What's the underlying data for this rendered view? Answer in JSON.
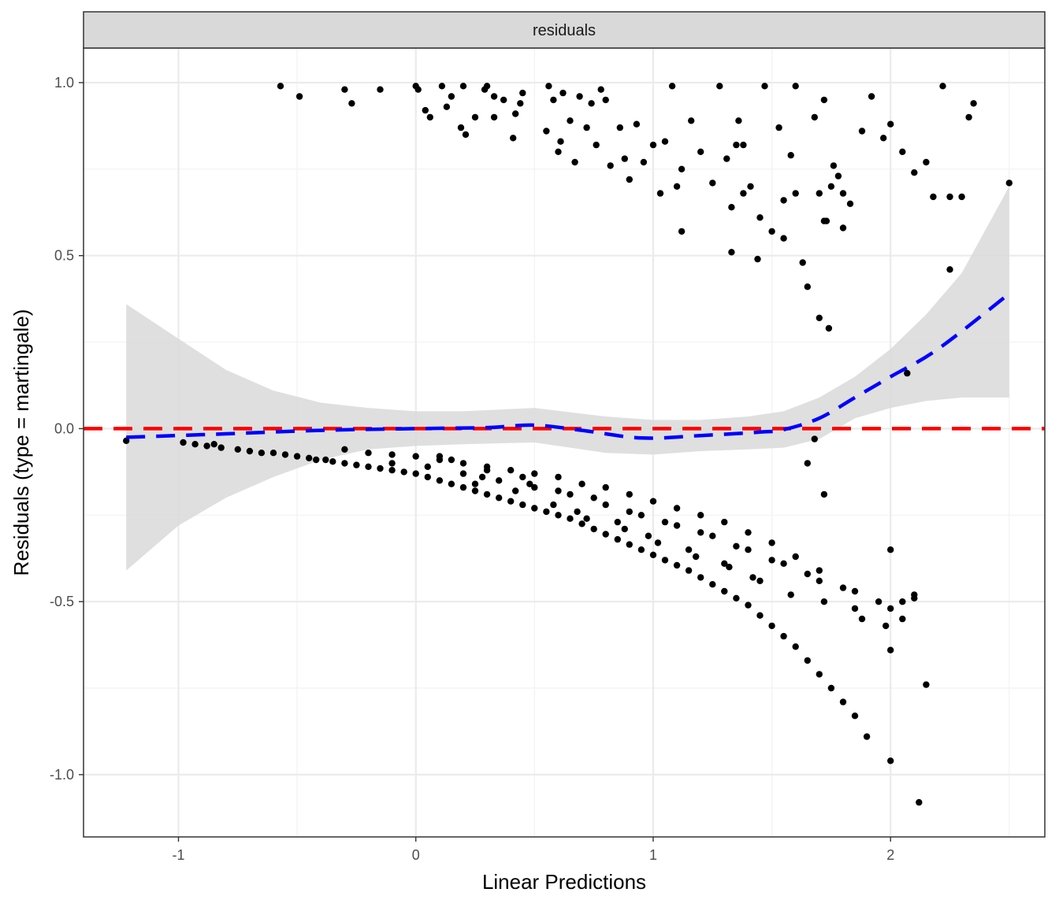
{
  "chart_data": {
    "type": "scatter",
    "facet_label": "residuals",
    "xlabel": "Linear Predictions",
    "ylabel": "Residuals (type = martingale)",
    "xlim": [
      -1.4,
      2.65
    ],
    "ylim": [
      -1.18,
      1.1
    ],
    "x_ticks": [
      -1,
      0,
      1,
      2
    ],
    "x_tick_labels": [
      "-1",
      "0",
      "1",
      "2"
    ],
    "y_ticks": [
      -1.0,
      -0.5,
      0.0,
      0.5,
      1.0
    ],
    "y_tick_labels": [
      "-1.0",
      "-0.5",
      "0.0",
      "0.5",
      "1.0"
    ],
    "grid": true,
    "colors": {
      "points": "#000000",
      "smooth": "#0000ff",
      "ribbon": "#d9d9d9",
      "reference": "#ff0000",
      "strip": "#d9d9d9"
    },
    "reference_line": {
      "y": 0,
      "style": "dashed",
      "color": "#ff0000"
    },
    "smooth": {
      "x": [
        -1.22,
        -0.8,
        -0.4,
        0.0,
        0.3,
        0.5,
        0.7,
        0.95,
        1.2,
        1.45,
        1.55,
        1.7,
        1.85,
        2.0,
        2.2,
        2.5
      ],
      "y": [
        -0.025,
        -0.015,
        -0.005,
        0.0,
        0.003,
        0.01,
        -0.005,
        -0.027,
        -0.02,
        -0.01,
        -0.003,
        0.03,
        0.09,
        0.15,
        0.23,
        0.39
      ]
    },
    "ribbon": {
      "x": [
        -1.22,
        -1.0,
        -0.8,
        -0.6,
        -0.4,
        -0.2,
        0.0,
        0.2,
        0.5,
        0.8,
        1.0,
        1.2,
        1.4,
        1.55,
        1.7,
        1.85,
        2.0,
        2.15,
        2.3,
        2.5
      ],
      "upper": [
        0.36,
        0.26,
        0.17,
        0.11,
        0.075,
        0.06,
        0.05,
        0.05,
        0.06,
        0.035,
        0.025,
        0.025,
        0.035,
        0.05,
        0.09,
        0.15,
        0.23,
        0.33,
        0.45,
        0.7
      ],
      "lower": [
        -0.41,
        -0.28,
        -0.2,
        -0.14,
        -0.09,
        -0.06,
        -0.05,
        -0.045,
        -0.04,
        -0.07,
        -0.075,
        -0.065,
        -0.06,
        -0.055,
        -0.03,
        0.03,
        0.06,
        0.08,
        0.09,
        0.09
      ]
    },
    "series": [
      {
        "x": [
          -0.57,
          -0.49,
          -0.3,
          -0.27,
          -0.15,
          0.0,
          0.01,
          0.04,
          0.06,
          0.11,
          0.13,
          0.15,
          0.19,
          0.2,
          0.21,
          0.25,
          0.29,
          0.33,
          0.33,
          0.37,
          0.41,
          0.42,
          0.44,
          0.55,
          0.56,
          0.58,
          0.61,
          0.62,
          0.65,
          0.67,
          0.69,
          0.72,
          0.74,
          0.76,
          0.78,
          0.82,
          0.86,
          0.88,
          0.9,
          0.93,
          0.96,
          1.0,
          1.03,
          1.05,
          1.08,
          1.12,
          1.16,
          1.2,
          1.25,
          1.28,
          1.31,
          1.33,
          1.36,
          1.38,
          1.41,
          1.44,
          1.47,
          1.5,
          1.53,
          1.55,
          1.58,
          1.6,
          1.63,
          1.65,
          1.68,
          1.7,
          1.72,
          1.73,
          1.74,
          1.76,
          1.78,
          1.8,
          1.83,
          1.88,
          1.92,
          1.97,
          2.0,
          2.05,
          2.1,
          2.15,
          2.18,
          2.22,
          2.25,
          2.3,
          2.33,
          2.35,
          2.5,
          0.3,
          0.45,
          0.6,
          0.8,
          1.1,
          1.35,
          1.45,
          1.55,
          1.7,
          1.12,
          1.33,
          1.38,
          1.6,
          1.72,
          1.75,
          1.8,
          2.07,
          2.25
        ],
        "y": [
          0.99,
          0.96,
          0.98,
          0.94,
          0.98,
          0.99,
          0.98,
          0.92,
          0.9,
          0.99,
          0.93,
          0.96,
          0.87,
          0.99,
          0.85,
          0.9,
          0.98,
          0.9,
          0.96,
          0.95,
          0.84,
          0.91,
          0.94,
          0.86,
          0.99,
          0.95,
          0.83,
          0.97,
          0.89,
          0.77,
          0.96,
          0.87,
          0.94,
          0.82,
          0.98,
          0.76,
          0.87,
          0.78,
          0.72,
          0.88,
          0.77,
          0.82,
          0.68,
          0.83,
          0.99,
          0.57,
          0.89,
          0.8,
          0.71,
          0.99,
          0.78,
          0.51,
          0.89,
          0.82,
          0.7,
          0.49,
          0.99,
          0.57,
          0.87,
          0.55,
          0.79,
          0.99,
          0.48,
          0.41,
          0.9,
          0.68,
          0.95,
          0.6,
          0.29,
          0.76,
          0.73,
          0.68,
          0.65,
          0.86,
          0.96,
          0.84,
          0.88,
          0.8,
          0.74,
          0.77,
          0.67,
          0.99,
          0.46,
          0.67,
          0.9,
          0.94,
          0.71,
          0.99,
          0.97,
          0.8,
          0.95,
          0.7,
          0.82,
          0.61,
          0.66,
          0.32,
          0.75,
          0.64,
          0.68,
          0.68,
          0.6,
          0.7,
          0.58,
          0.16,
          0.67
        ]
      },
      {
        "x": [
          -1.22,
          -0.98,
          -0.93,
          -0.88,
          -0.85,
          -0.82,
          -0.75,
          -0.7,
          -0.65,
          -0.6,
          -0.55,
          -0.5,
          -0.45,
          -0.42,
          -0.38,
          -0.35,
          -0.3,
          -0.25,
          -0.2,
          -0.15,
          -0.1,
          -0.05,
          0.0,
          0.05,
          0.1,
          0.15,
          0.2,
          0.25,
          0.3,
          0.35,
          0.4,
          0.45,
          0.5,
          0.55,
          0.6,
          0.65,
          0.7,
          0.75,
          0.8,
          0.85,
          0.9,
          0.95,
          1.0,
          1.05,
          1.1,
          1.15,
          1.2,
          1.25,
          1.3,
          1.35,
          1.4,
          1.45,
          1.5,
          1.55,
          1.6,
          1.65,
          1.7,
          1.75,
          1.8,
          1.85,
          1.9,
          2.0,
          2.0,
          2.05,
          2.1,
          2.12,
          2.15,
          -0.3,
          -0.2,
          -0.1,
          0.0,
          0.1,
          0.2,
          0.3,
          0.4,
          0.5,
          0.6,
          0.7,
          0.8,
          0.9,
          1.0,
          1.1,
          1.2,
          1.3,
          1.4,
          1.5,
          1.6,
          1.7,
          -0.1,
          0.05,
          0.2,
          0.35,
          0.5,
          0.65,
          0.8,
          0.95,
          1.1,
          1.25,
          1.4,
          1.55,
          1.7,
          1.85,
          1.95,
          2.0,
          0.15,
          0.3,
          0.45,
          0.6,
          0.75,
          0.9,
          1.05,
          1.2,
          1.35,
          1.5,
          1.65,
          1.8,
          0.25,
          0.42,
          0.58,
          0.72,
          0.88,
          1.02,
          1.18,
          1.32,
          1.45,
          1.58,
          1.72,
          1.88,
          0.1,
          0.28,
          0.48,
          0.68,
          0.85,
          0.98,
          1.15,
          1.3,
          1.42,
          1.65,
          1.68,
          1.72,
          1.85,
          1.98,
          2.0,
          2.05,
          2.1
        ],
        "y": [
          -0.035,
          -0.04,
          -0.045,
          -0.05,
          -0.045,
          -0.055,
          -0.06,
          -0.065,
          -0.07,
          -0.07,
          -0.075,
          -0.08,
          -0.085,
          -0.09,
          -0.09,
          -0.095,
          -0.1,
          -0.105,
          -0.11,
          -0.115,
          -0.12,
          -0.125,
          -0.13,
          -0.14,
          -0.15,
          -0.16,
          -0.17,
          -0.18,
          -0.19,
          -0.2,
          -0.21,
          -0.22,
          -0.23,
          -0.24,
          -0.25,
          -0.26,
          -0.275,
          -0.29,
          -0.305,
          -0.32,
          -0.335,
          -0.35,
          -0.365,
          -0.38,
          -0.395,
          -0.41,
          -0.43,
          -0.45,
          -0.47,
          -0.49,
          -0.51,
          -0.54,
          -0.57,
          -0.6,
          -0.63,
          -0.67,
          -0.71,
          -0.75,
          -0.79,
          -0.83,
          -0.89,
          -0.96,
          -0.64,
          -0.55,
          -0.48,
          -1.08,
          -0.74,
          -0.06,
          -0.07,
          -0.075,
          -0.08,
          -0.09,
          -0.1,
          -0.11,
          -0.12,
          -0.13,
          -0.14,
          -0.16,
          -0.17,
          -0.19,
          -0.21,
          -0.23,
          -0.25,
          -0.27,
          -0.3,
          -0.33,
          -0.37,
          -0.41,
          -0.1,
          -0.11,
          -0.13,
          -0.15,
          -0.17,
          -0.19,
          -0.22,
          -0.25,
          -0.28,
          -0.31,
          -0.35,
          -0.39,
          -0.44,
          -0.47,
          -0.5,
          -0.35,
          -0.09,
          -0.12,
          -0.14,
          -0.18,
          -0.2,
          -0.24,
          -0.27,
          -0.3,
          -0.34,
          -0.38,
          -0.42,
          -0.46,
          -0.16,
          -0.18,
          -0.22,
          -0.26,
          -0.29,
          -0.33,
          -0.37,
          -0.4,
          -0.44,
          -0.48,
          -0.5,
          -0.55,
          -0.08,
          -0.14,
          -0.16,
          -0.24,
          -0.27,
          -0.31,
          -0.35,
          -0.39,
          -0.43,
          -0.1,
          -0.03,
          -0.19,
          -0.52,
          -0.57,
          -0.52,
          -0.5,
          -0.49
        ]
      }
    ]
  }
}
